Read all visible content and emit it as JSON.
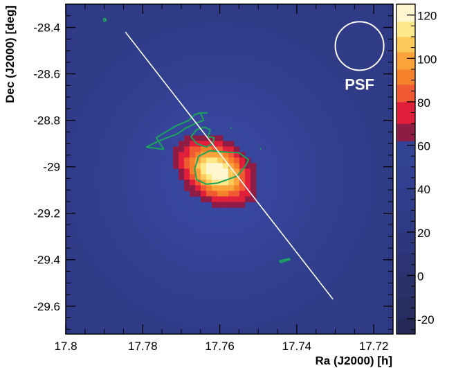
{
  "chart_data": {
    "type": "heatmap",
    "title": "",
    "xlabel": "Ra (J2000) [h]",
    "ylabel": "Dec (J2000) [deg]",
    "xlim": [
      17.8,
      17.715
    ],
    "x_axis_reversed": true,
    "ylim": [
      -29.72,
      -28.3
    ],
    "x_ticks": [
      17.8,
      17.78,
      17.76,
      17.74,
      17.72
    ],
    "x_tick_labels": [
      "17.8",
      "17.78",
      "17.76",
      "17.74",
      "17.72"
    ],
    "y_ticks": [
      -28.4,
      -28.6,
      -28.8,
      -29,
      -29.2,
      -29.4,
      -29.6
    ],
    "y_tick_labels": [
      "-28.4",
      "-28.6",
      "-28.8",
      "-29",
      "-29.2",
      "-29.4",
      "-29.6"
    ],
    "grid": false,
    "colorbar": {
      "range": [
        -27,
        125
      ],
      "ticks": [
        -20,
        0,
        20,
        40,
        60,
        80,
        100,
        120
      ],
      "tick_labels": [
        "-20",
        "0",
        "20",
        "40",
        "60",
        "80",
        "100",
        "120"
      ],
      "bands": [
        {
          "from": -27,
          "to": -20,
          "color": "#262a57"
        },
        {
          "from": -20,
          "to": -10,
          "color": "#272d60"
        },
        {
          "from": -10,
          "to": 0,
          "color": "#29306a"
        },
        {
          "from": 0,
          "to": 10,
          "color": "#2b3373"
        },
        {
          "from": 10,
          "to": 20,
          "color": "#2d377c"
        },
        {
          "from": 20,
          "to": 30,
          "color": "#2e3a84"
        },
        {
          "from": 30,
          "to": 40,
          "color": "#303d8b"
        },
        {
          "from": 40,
          "to": 50,
          "color": "#314090"
        },
        {
          "from": 50,
          "to": 62,
          "color": "#334394"
        },
        {
          "from": 62,
          "to": 70,
          "color": "#8e1d46"
        },
        {
          "from": 70,
          "to": 80,
          "color": "#e0203a"
        },
        {
          "from": 80,
          "to": 88,
          "color": "#f05a32"
        },
        {
          "from": 88,
          "to": 95,
          "color": "#f5822b"
        },
        {
          "from": 95,
          "to": 103,
          "color": "#f9a33a"
        },
        {
          "from": 103,
          "to": 110,
          "color": "#fbc85a"
        },
        {
          "from": 110,
          "to": 117,
          "color": "#fde88a"
        },
        {
          "from": 117,
          "to": 125,
          "color": "#fff6cf"
        }
      ]
    },
    "excess_peak": {
      "ra": 17.761,
      "dec": -29.02,
      "value": 125
    },
    "annotations": [
      {
        "type": "circle",
        "text": "PSF",
        "ra": 17.7237,
        "dec": -28.48
      }
    ],
    "overlays": {
      "white_line": [
        {
          "ra": 17.7845,
          "dec": -28.42
        },
        {
          "ra": 17.7306,
          "dec": -29.57
        }
      ],
      "green_contours": [
        {
          "name": "main",
          "points": [
            [
              17.7665,
              -29.01
            ],
            [
              17.7655,
              -28.955
            ],
            [
              17.7625,
              -28.93
            ],
            [
              17.76,
              -28.935
            ],
            [
              17.755,
              -28.94
            ],
            [
              17.7525,
              -28.97
            ],
            [
              17.7535,
              -29.0
            ],
            [
              17.7555,
              -29.04
            ],
            [
              17.7605,
              -29.07
            ],
            [
              17.7635,
              -29.075
            ],
            [
              17.766,
              -29.055
            ],
            [
              17.7665,
              -29.01
            ]
          ]
        },
        {
          "name": "upper-left",
          "points": [
            [
              17.7745,
              -28.925
            ],
            [
              17.7765,
              -28.875
            ],
            [
              17.7715,
              -28.825
            ],
            [
              17.768,
              -28.8
            ],
            [
              17.7665,
              -28.775
            ],
            [
              17.765,
              -28.768
            ],
            [
              17.7642,
              -28.8
            ],
            [
              17.7665,
              -28.815
            ],
            [
              17.769,
              -28.835
            ],
            [
              17.771,
              -28.858
            ],
            [
              17.776,
              -28.89
            ],
            [
              17.779,
              -28.915
            ],
            [
              17.7745,
              -28.925
            ]
          ]
        },
        {
          "name": "upper-arm",
          "points": [
            [
              17.7675,
              -28.87
            ],
            [
              17.766,
              -28.84
            ],
            [
              17.764,
              -28.83
            ],
            [
              17.7625,
              -28.84
            ],
            [
              17.763,
              -28.87
            ],
            [
              17.7615,
              -28.875
            ],
            [
              17.7618,
              -28.9
            ],
            [
              17.7635,
              -28.915
            ],
            [
              17.766,
              -28.9
            ],
            [
              17.7675,
              -28.87
            ]
          ]
        },
        {
          "name": "top-tick",
          "points": [
            [
              17.7648,
              -28.768
            ],
            [
              17.7632,
              -28.768
            ]
          ]
        },
        {
          "name": "far-top-left",
          "points": [
            [
              17.7898,
              -28.36
            ],
            [
              17.7895,
              -28.37
            ],
            [
              17.79,
              -28.375
            ],
            [
              17.7902,
              -28.365
            ],
            [
              17.7898,
              -28.36
            ]
          ]
        },
        {
          "name": "small-right",
          "points": [
            [
              17.7572,
              -28.83
            ],
            [
              17.757,
              -28.835
            ]
          ]
        },
        {
          "name": "right-dot",
          "points": [
            [
              17.7495,
              -28.92
            ],
            [
              17.7493,
              -28.925
            ]
          ]
        },
        {
          "name": "lower-blob",
          "points": [
            [
              17.7445,
              -29.405
            ],
            [
              17.742,
              -29.395
            ],
            [
              17.7418,
              -29.4
            ],
            [
              17.7442,
              -29.412
            ],
            [
              17.7445,
              -29.405
            ]
          ]
        }
      ]
    }
  }
}
